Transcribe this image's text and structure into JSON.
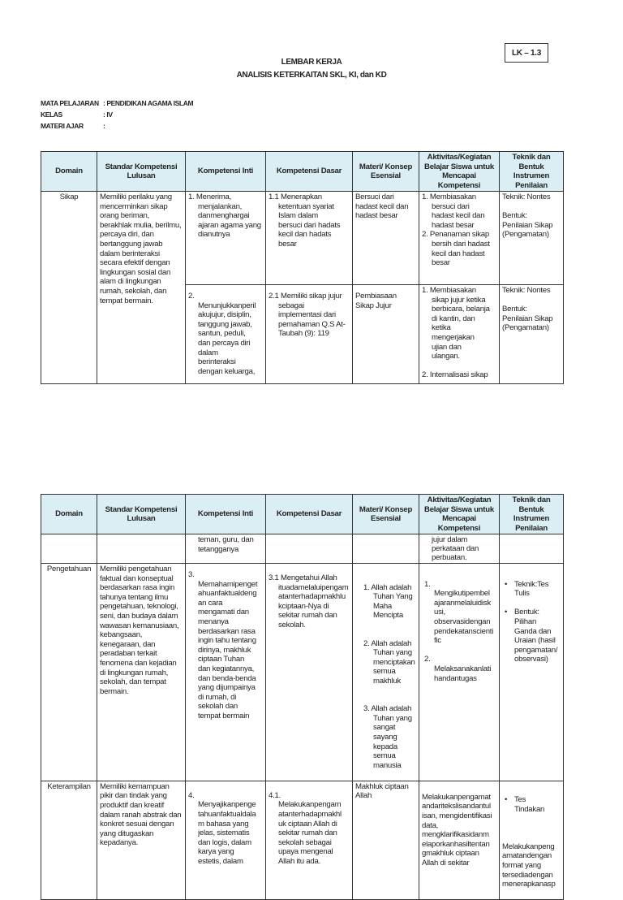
{
  "doc_code": "LK – 1.3",
  "title": "LEMBAR KERJA",
  "subtitle": "ANALISIS KETERKAITAN SKL, KI, dan KD",
  "meta": [
    {
      "label": "MATA PELAJARAN",
      "value": ": PENDIDIKAN AGAMA ISLAM"
    },
    {
      "label": "KELAS",
      "value": ": IV"
    },
    {
      "label": "MATERI  AJAR",
      "value": ":"
    }
  ],
  "headers": [
    "Domain",
    "Standar Kompetensi Lulusan",
    "Kompetensi Inti",
    "Kompetensi Dasar",
    "Materi/ Konsep Esensial",
    "Aktivitas/Kegiatan Belajar Siswa untuk Mencapai Kompetensi",
    "Teknik dan Bentuk Instrumen Penilaian"
  ],
  "table1": {
    "sikap": {
      "domain": "Sikap",
      "skl": "Memiliki perilaku yang\nmencerminkan sikap\norang beriman,\nberakhlak mulia, berilmu,\npercaya diri, dan\nbertanggung jawab\ndalam berinteraksi\nsecara efektif dengan\nlingkungan sosial dan\nalam di lingkungan\nrumah, sekolah, dan\ntempat bermain.",
      "row1": {
        "ki": "1. Menerima,\nmenjalankan,\ndanmenghargai\najaran agama yang\ndianutnya",
        "kd": "1.1 Menerapkan\nketentuan syariat\nIslam dalam\nbersuci dari hadats\nkecil dan hadats\nbesar",
        "materi": "Bersuci dari\nhadast kecil dan\nhadast besar",
        "aktivitas": [
          "1.  Membiasakan\nbersuci dari\nhadast kecil dan\nhadast besar",
          "2.  Penanaman sikap\nbersih dari hadast\nkecil dan hadast\nbesar"
        ],
        "teknik": "Teknik: Nontes\n\nBentuk:\nPenilaian Sikap\n(Pengamatan)"
      },
      "row2": {
        "ki": "2.\nMenunjukkanperil\nakujujur, disiplin,\ntanggung jawab,\nsantun, peduli,\ndan percaya diri\ndalam\nberinteraksi\ndengan keluarga,",
        "kd": "2.1 Memiliki sikap jujur\nsebagai\nimplementasi dari\npemahaman Q.S At-\nTaubah (9): 119",
        "materi": "Pembiasaan\nSikap Jujur",
        "aktivitas": [
          "1. Membiasakan\nsikap jujur ketika\nberbicara, belanja\ndi kantin, dan\nketika\nmengerjakan\nujian dan\nulangan.",
          "2. Internalisasi sikap"
        ],
        "teknik": "Teknik: Nontes\n\nBentuk:\nPenilaian Sikap\n(Pengamatan)"
      }
    }
  },
  "table2": {
    "continuation": {
      "ki": "teman, guru, dan\ntetangganya",
      "aktivitas": "jujur dalam\nperkataan dan\nperbuatan."
    },
    "pengetahuan": {
      "domain": "Pengetahuan",
      "skl": "Memiliki pengetahuan\nfaktual dan konseptual\nberdasarkan rasa ingin\ntahunya tentang ilmu\npengetahuan, teknologi,\nseni, dan budaya dalam\nwawasan kemanusiaan,\nkebangsaan,\nkenegaraan, dan\nperadaban terkait\nfenomena dan kejadian\ndi lingkungan rumah,\nsekolah, dan tempat\nbermain.",
      "ki": "3.\nMemahamipenget\nahuanfaktualdeng\nan cara\nmengamati dan\nmenanya\nberdasarkan rasa\ningin tahu tentang\ndirinya, makhluk\nciptaan Tuhan\ndan kegiatannya,\ndan benda-benda\nyang dijumpainya\ndi rumah, di\nsekolah dan\ntempat bermain",
      "kd": "3.1 Mengetahui Allah\nituadamelaluipengam\natanterhadapmakhlu\nkciptaan-Nya di\nsekitar rumah dan\nsekolah.",
      "materi": [
        "1. Allah adalah\nTuhan Yang\nMaha\nMencipta",
        "2. Allah adalah\nTuhan yang\nmenciptakan\nsemua\nmakhluk",
        "3. Allah adalah\nTuhan yang\nsangat sayang\nkepada semua\nmanusia"
      ],
      "aktivitas": [
        "1.\nMengikutipembel\najaranmelaluidisk\nusi,\nobservasidengan\npendekatanscienti\nfic",
        "2.\nMelaksanakanlati\nhandantugas"
      ],
      "teknik": [
        "Teknik:Tes\nTulis",
        "Bentuk:\nPilihan\nGanda dan\nUraian (hasil\npengamatan/\nobservasi)"
      ]
    },
    "keterampilan": {
      "domain": "Keterampilan",
      "skl": "Memiliki kemampuan\npikir dan tindak yang\nproduktif dan kreatif\ndalam ranah abstrak dan\nkonkret sesuai dengan\nyang ditugaskan\nkepadanya.",
      "ki": "4.\nMenyajikanpenge\ntahuanfaktualdala\nm bahasa yang\njelas, sistematis\ndan logis, dalam\nkarya yang\nestetis, dalam",
      "kd": "4.1.\nMelakukanpengam\natanterhadapmakhl\nuk ciptaan Allah di\nsekitar rumah dan\nsekolah sebagai\nupaya mengenal\nAllah itu ada.",
      "materi": "Makhluk ciptaan\nAllah",
      "aktivitas": "Melakukanpengamat\nandaritekslisandantul\nisan, mengidentifikasi\ndata,\nmengklarifikasidanm\nelaporkanhasiltentan\ngmakhluk ciptaan\nAllah di sekitar",
      "teknik_bullet": "Tes\nTindakan",
      "teknik_text": "Melakukanpeng\namatandengan\nformat yang\ntersediadengan\nmenerapkanasp"
    }
  }
}
